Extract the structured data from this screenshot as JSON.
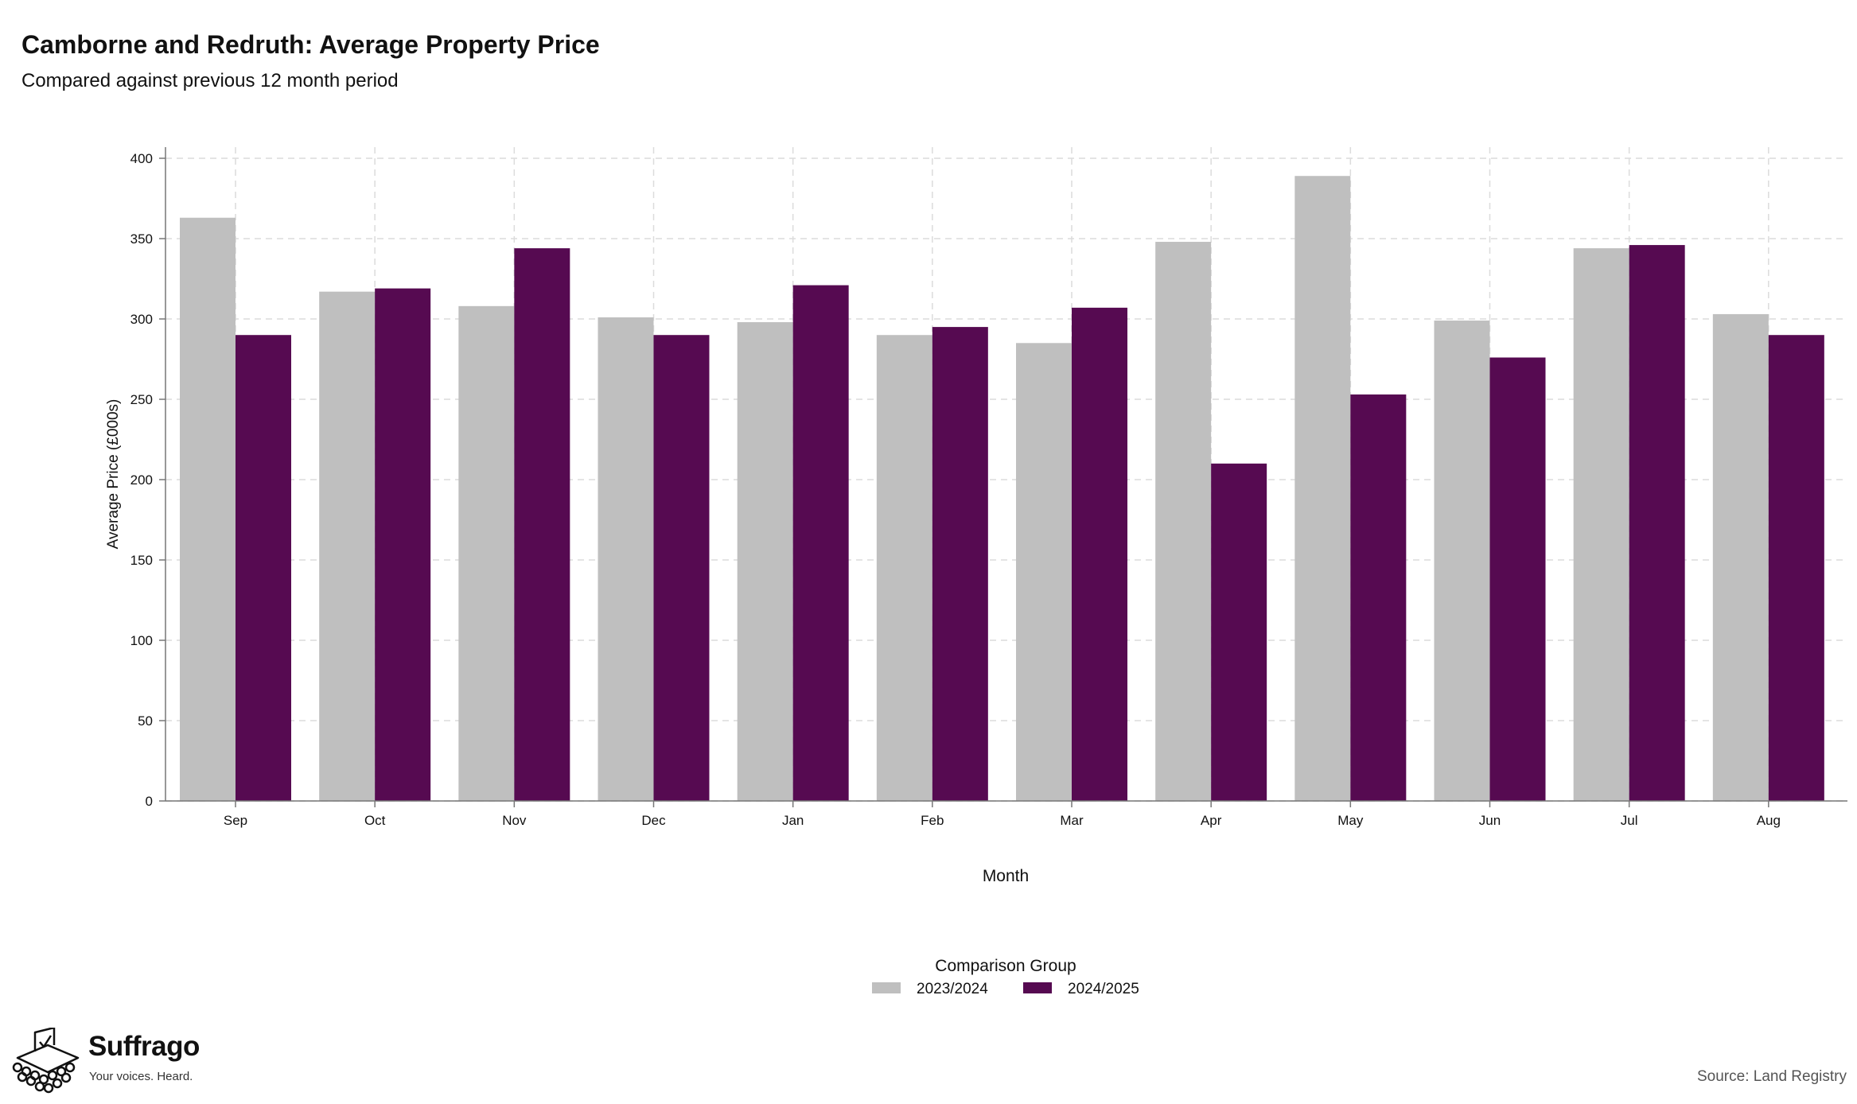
{
  "header": {
    "title": "Camborne and Redruth: Average Property Price",
    "subtitle": "Compared against previous 12 month period"
  },
  "chart_data": {
    "type": "bar",
    "categories": [
      "Sep",
      "Oct",
      "Nov",
      "Dec",
      "Jan",
      "Feb",
      "Mar",
      "Apr",
      "May",
      "Jun",
      "Jul",
      "Aug"
    ],
    "series": [
      {
        "name": "2023/2024",
        "color": "#bfbfbf",
        "values": [
          363,
          317,
          308,
          301,
          298,
          290,
          285,
          348,
          389,
          299,
          344,
          303
        ]
      },
      {
        "name": "2024/2025",
        "color": "#560a51",
        "values": [
          290,
          319,
          344,
          290,
          321,
          295,
          307,
          210,
          253,
          276,
          346,
          290
        ]
      }
    ],
    "xlabel": "Month",
    "ylabel": "Average Price (£000s)",
    "ylim": [
      0,
      400
    ],
    "yticks": [
      0,
      50,
      100,
      150,
      200,
      250,
      300,
      350,
      400
    ],
    "grid": true,
    "legend": {
      "title": "Comparison Group",
      "placement": "bottom-center"
    }
  },
  "branding": {
    "name": "Suffrago",
    "tagline": "Your voices. Heard.",
    "logo_icon": "ballot-box-icon"
  },
  "footer": {
    "source": "Source: Land Registry"
  }
}
